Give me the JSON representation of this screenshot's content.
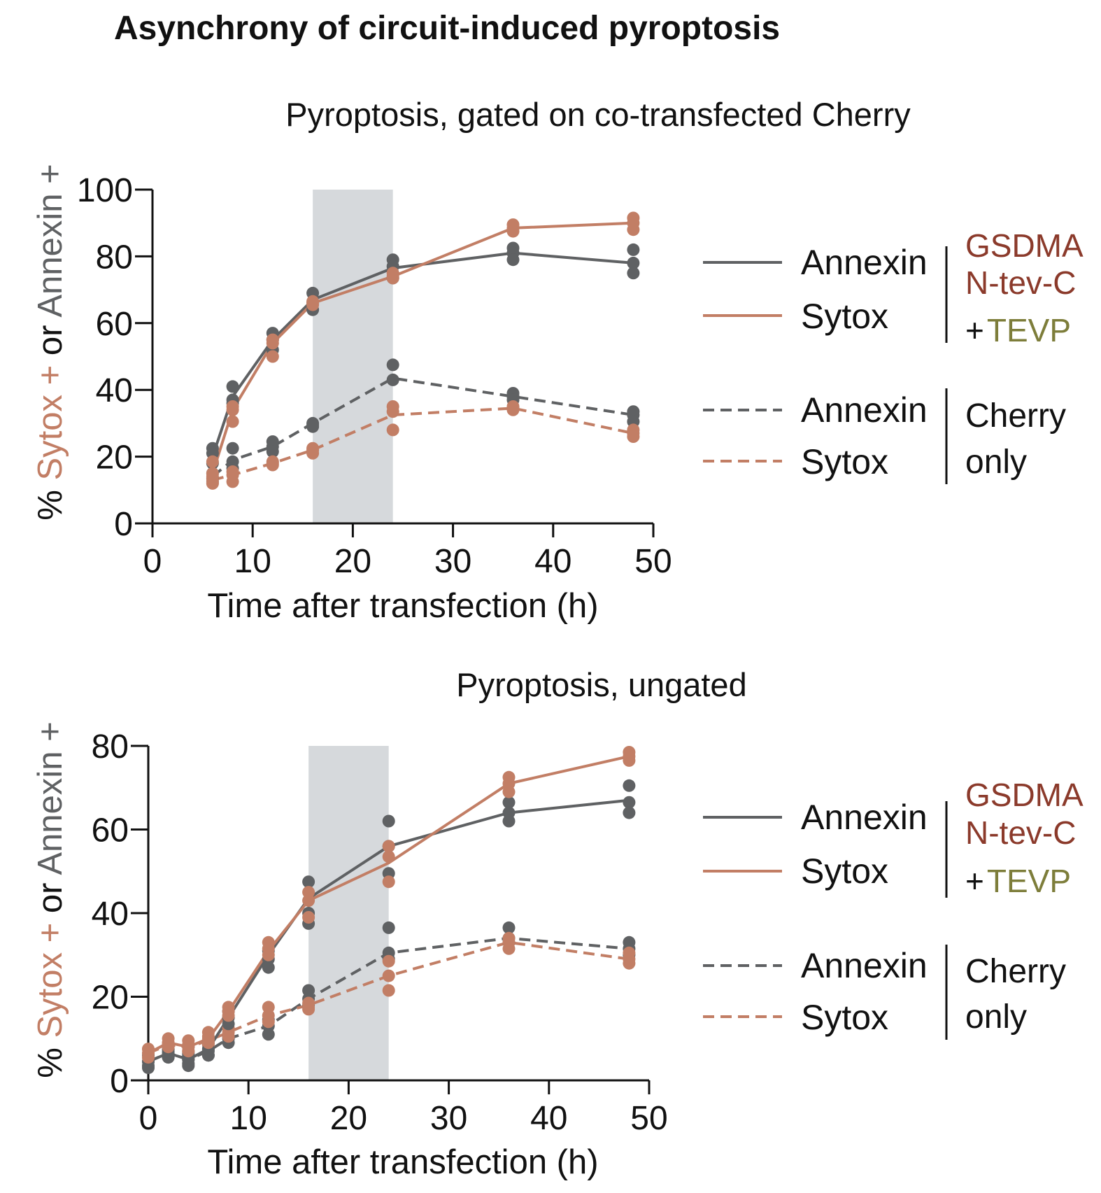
{
  "figure_title": "Asynchrony of circuit-induced pyroptosis",
  "colors": {
    "annexin": "#5f6163",
    "sytox": "#c27e65",
    "shade": "#d6d9dc",
    "gsdma": "#8b3a2b",
    "tevp": "#7d7d3a",
    "axis": "#111111"
  },
  "legend": {
    "group1_items": [
      "Annexin",
      "Sytox"
    ],
    "group1_label": [
      "GSDMA",
      "N-tev-C"
    ],
    "group1_plus": "+",
    "group1_tevp": "TEVP",
    "group2_items": [
      "Annexin",
      "Sytox"
    ],
    "group2_label": [
      "Cherry",
      "only"
    ]
  },
  "ylabel_parts": {
    "pct": "% ",
    "sytox": "Sytox +",
    "or": " or ",
    "annexin": "Annexin +"
  },
  "chart_data": [
    {
      "type": "line",
      "title": "Pyroptosis, gated on co-transfected Cherry",
      "xlabel": "Time after transfection (h)",
      "ylabel": "% Sytox + or Annexin +",
      "xlim": [
        0,
        50
      ],
      "ylim": [
        0,
        100
      ],
      "xticks": [
        0,
        10,
        20,
        30,
        40,
        50
      ],
      "yticks": [
        0,
        20,
        40,
        60,
        80,
        100
      ],
      "shaded_region": [
        16,
        24
      ],
      "series": [
        {
          "name": "Annexin",
          "group": "GSDMA N-tev-C + TEVP",
          "style": "solid",
          "color_key": "annexin",
          "x": [
            6,
            8,
            12,
            16,
            24,
            36,
            48
          ],
          "mean": [
            20,
            38,
            55,
            67,
            76.5,
            81,
            78
          ],
          "points": [
            [
              6,
              22.5
            ],
            [
              6,
              21
            ],
            [
              6,
              18
            ],
            [
              8,
              41
            ],
            [
              8,
              37
            ],
            [
              8,
              36
            ],
            [
              12,
              57
            ],
            [
              12,
              55
            ],
            [
              12,
              52
            ],
            [
              16,
              69
            ],
            [
              16,
              66
            ],
            [
              16,
              64
            ],
            [
              24,
              79
            ],
            [
              24,
              77
            ],
            [
              24,
              73.5
            ],
            [
              36,
              82.5
            ],
            [
              36,
              81
            ],
            [
              36,
              79
            ],
            [
              48,
              82
            ],
            [
              48,
              78
            ],
            [
              48,
              75
            ]
          ]
        },
        {
          "name": "Sytox",
          "group": "GSDMA N-tev-C + TEVP",
          "style": "solid",
          "color_key": "sytox",
          "x": [
            6,
            8,
            12,
            16,
            24,
            36,
            48
          ],
          "mean": [
            15,
            34,
            54,
            66,
            74,
            88.5,
            90
          ],
          "points": [
            [
              6,
              18.5
            ],
            [
              6,
              15
            ],
            [
              6,
              12
            ],
            [
              8,
              35
            ],
            [
              8,
              34
            ],
            [
              8,
              30.5
            ],
            [
              12,
              55
            ],
            [
              12,
              54
            ],
            [
              12,
              50
            ],
            [
              16,
              66.5
            ],
            [
              16,
              66
            ],
            [
              16,
              65.5
            ],
            [
              24,
              75
            ],
            [
              24,
              74
            ],
            [
              24,
              73.5
            ],
            [
              36,
              89.5
            ],
            [
              36,
              88.5
            ],
            [
              36,
              87.5
            ],
            [
              48,
              91.5
            ],
            [
              48,
              90
            ],
            [
              48,
              88
            ]
          ]
        },
        {
          "name": "Annexin",
          "group": "Cherry only",
          "style": "dashed",
          "color_key": "annexin",
          "x": [
            6,
            8,
            12,
            16,
            24,
            36,
            48
          ],
          "mean": [
            14,
            19,
            23,
            30,
            43.5,
            38,
            32.5
          ],
          "points": [
            [
              6,
              15
            ],
            [
              6,
              13.5
            ],
            [
              6,
              12.5
            ],
            [
              8,
              22.5
            ],
            [
              8,
              18.5
            ],
            [
              8,
              16.5
            ],
            [
              12,
              24.5
            ],
            [
              12,
              23
            ],
            [
              12,
              21.5
            ],
            [
              16,
              30
            ],
            [
              16,
              29.5
            ],
            [
              16,
              29
            ],
            [
              24,
              47.5
            ],
            [
              24,
              43
            ],
            [
              36,
              39
            ],
            [
              36,
              38
            ],
            [
              36,
              37
            ],
            [
              48,
              33.5
            ],
            [
              48,
              32.5
            ],
            [
              48,
              30.5
            ]
          ]
        },
        {
          "name": "Sytox",
          "group": "Cherry only",
          "style": "dashed",
          "color_key": "sytox",
          "x": [
            6,
            8,
            12,
            16,
            24,
            36,
            48
          ],
          "mean": [
            13,
            14.5,
            18,
            22,
            32.5,
            34.5,
            27
          ],
          "points": [
            [
              6,
              14
            ],
            [
              6,
              13
            ],
            [
              6,
              12
            ],
            [
              8,
              15.5
            ],
            [
              8,
              14.5
            ],
            [
              8,
              12.5
            ],
            [
              12,
              18.5
            ],
            [
              12,
              18
            ],
            [
              12,
              17.5
            ],
            [
              16,
              22.5
            ],
            [
              16,
              22
            ],
            [
              16,
              21
            ],
            [
              24,
              35
            ],
            [
              24,
              33.5
            ],
            [
              24,
              28
            ],
            [
              36,
              35
            ],
            [
              36,
              34.5
            ],
            [
              36,
              34
            ],
            [
              48,
              28
            ],
            [
              48,
              27
            ],
            [
              48,
              26
            ]
          ]
        }
      ]
    },
    {
      "type": "line",
      "title": "Pyroptosis, ungated",
      "xlabel": "Time after transfection (h)",
      "ylabel": "% Sytox + or Annexin +",
      "xlim": [
        0,
        50
      ],
      "ylim": [
        0,
        80
      ],
      "xticks": [
        0,
        10,
        20,
        30,
        40,
        50
      ],
      "yticks": [
        0,
        20,
        40,
        60,
        80
      ],
      "shaded_region": [
        16,
        24
      ],
      "series": [
        {
          "name": "Annexin",
          "group": "GSDMA N-tev-C + TEVP",
          "style": "solid",
          "color_key": "annexin",
          "x": [
            0,
            2,
            4,
            6,
            8,
            12,
            16,
            24,
            36,
            48
          ],
          "mean": [
            4.5,
            6.5,
            5,
            7.5,
            15,
            30,
            43.5,
            56,
            64,
            67
          ],
          "points": [
            [
              0,
              6
            ],
            [
              0,
              4.5
            ],
            [
              0,
              3
            ],
            [
              2,
              7.5
            ],
            [
              2,
              6.5
            ],
            [
              2,
              5.5
            ],
            [
              4,
              6.5
            ],
            [
              4,
              5
            ],
            [
              4,
              3.5
            ],
            [
              6,
              9
            ],
            [
              6,
              7.5
            ],
            [
              6,
              6
            ],
            [
              8,
              16.5
            ],
            [
              8,
              15
            ],
            [
              8,
              13.5
            ],
            [
              12,
              31
            ],
            [
              12,
              29
            ],
            [
              12,
              27
            ],
            [
              16,
              47.5
            ],
            [
              16,
              40
            ],
            [
              16,
              37.5
            ],
            [
              24,
              62
            ],
            [
              24,
              56
            ],
            [
              24,
              49.5
            ],
            [
              36,
              66.5
            ],
            [
              36,
              64
            ],
            [
              36,
              62
            ],
            [
              48,
              70.5
            ],
            [
              48,
              66.5
            ],
            [
              48,
              64
            ]
          ]
        },
        {
          "name": "Sytox",
          "group": "GSDMA N-tev-C + TEVP",
          "style": "solid",
          "color_key": "sytox",
          "x": [
            0,
            2,
            4,
            6,
            8,
            12,
            16,
            24,
            36,
            48
          ],
          "mean": [
            6.5,
            9,
            8,
            10,
            16.5,
            31,
            43,
            52,
            71,
            77.5
          ],
          "points": [
            [
              0,
              7.5
            ],
            [
              0,
              6.5
            ],
            [
              0,
              5.5
            ],
            [
              2,
              10
            ],
            [
              2,
              9
            ],
            [
              2,
              8
            ],
            [
              4,
              9.5
            ],
            [
              4,
              8
            ],
            [
              4,
              7
            ],
            [
              6,
              11.5
            ],
            [
              6,
              10
            ],
            [
              6,
              9
            ],
            [
              8,
              17.5
            ],
            [
              8,
              16.5
            ],
            [
              8,
              15.5
            ],
            [
              12,
              33
            ],
            [
              12,
              31.5
            ],
            [
              12,
              30
            ],
            [
              16,
              45
            ],
            [
              16,
              43
            ],
            [
              16,
              39
            ],
            [
              24,
              56
            ],
            [
              24,
              53.5
            ],
            [
              24,
              47.5
            ],
            [
              36,
              72.5
            ],
            [
              36,
              71
            ],
            [
              36,
              69
            ],
            [
              48,
              78.5
            ],
            [
              48,
              77.5
            ],
            [
              48,
              76.5
            ]
          ]
        },
        {
          "name": "Annexin",
          "group": "Cherry only",
          "style": "dashed",
          "color_key": "annexin",
          "x": [
            0,
            2,
            4,
            6,
            8,
            12,
            16,
            24,
            36,
            48
          ],
          "mean": [
            4.5,
            6.5,
            5,
            7,
            10,
            13,
            19.5,
            30.5,
            34,
            31.5
          ],
          "points": [
            [
              0,
              5.5
            ],
            [
              0,
              4.5
            ],
            [
              0,
              3.5
            ],
            [
              2,
              7
            ],
            [
              2,
              6.5
            ],
            [
              2,
              5.5
            ],
            [
              4,
              6
            ],
            [
              4,
              5
            ],
            [
              4,
              4
            ],
            [
              6,
              7.5
            ],
            [
              6,
              7
            ],
            [
              6,
              6
            ],
            [
              8,
              10.5
            ],
            [
              8,
              10
            ],
            [
              8,
              9
            ],
            [
              12,
              14.5
            ],
            [
              12,
              13
            ],
            [
              12,
              11
            ],
            [
              16,
              21.5
            ],
            [
              16,
              19.5
            ],
            [
              16,
              18
            ],
            [
              24,
              36.5
            ],
            [
              24,
              30.5
            ],
            [
              24,
              29
            ],
            [
              36,
              36.5
            ],
            [
              36,
              34
            ],
            [
              36,
              33
            ],
            [
              48,
              33
            ],
            [
              48,
              31.5
            ],
            [
              48,
              30
            ]
          ]
        },
        {
          "name": "Sytox",
          "group": "Cherry only",
          "style": "dashed",
          "color_key": "sytox",
          "x": [
            0,
            2,
            4,
            6,
            8,
            12,
            16,
            24,
            36,
            48
          ],
          "mean": [
            6.5,
            8.5,
            8,
            9.5,
            11.5,
            15.5,
            18,
            25,
            33,
            29
          ],
          "points": [
            [
              0,
              7.5
            ],
            [
              0,
              6.5
            ],
            [
              0,
              5.5
            ],
            [
              2,
              9
            ],
            [
              2,
              8.5
            ],
            [
              2,
              7.5
            ],
            [
              4,
              8.5
            ],
            [
              4,
              8
            ],
            [
              4,
              7
            ],
            [
              6,
              10.5
            ],
            [
              6,
              9.5
            ],
            [
              6,
              8.5
            ],
            [
              8,
              12.5
            ],
            [
              8,
              11.5
            ],
            [
              8,
              10.5
            ],
            [
              12,
              17.5
            ],
            [
              12,
              15.5
            ],
            [
              12,
              14
            ],
            [
              16,
              18.5
            ],
            [
              16,
              17.5
            ],
            [
              16,
              17
            ],
            [
              24,
              28.5
            ],
            [
              24,
              25
            ],
            [
              24,
              21.5
            ],
            [
              36,
              34
            ],
            [
              36,
              33
            ],
            [
              36,
              31.5
            ],
            [
              48,
              30.5
            ],
            [
              48,
              29
            ],
            [
              48,
              28
            ]
          ]
        }
      ]
    }
  ]
}
